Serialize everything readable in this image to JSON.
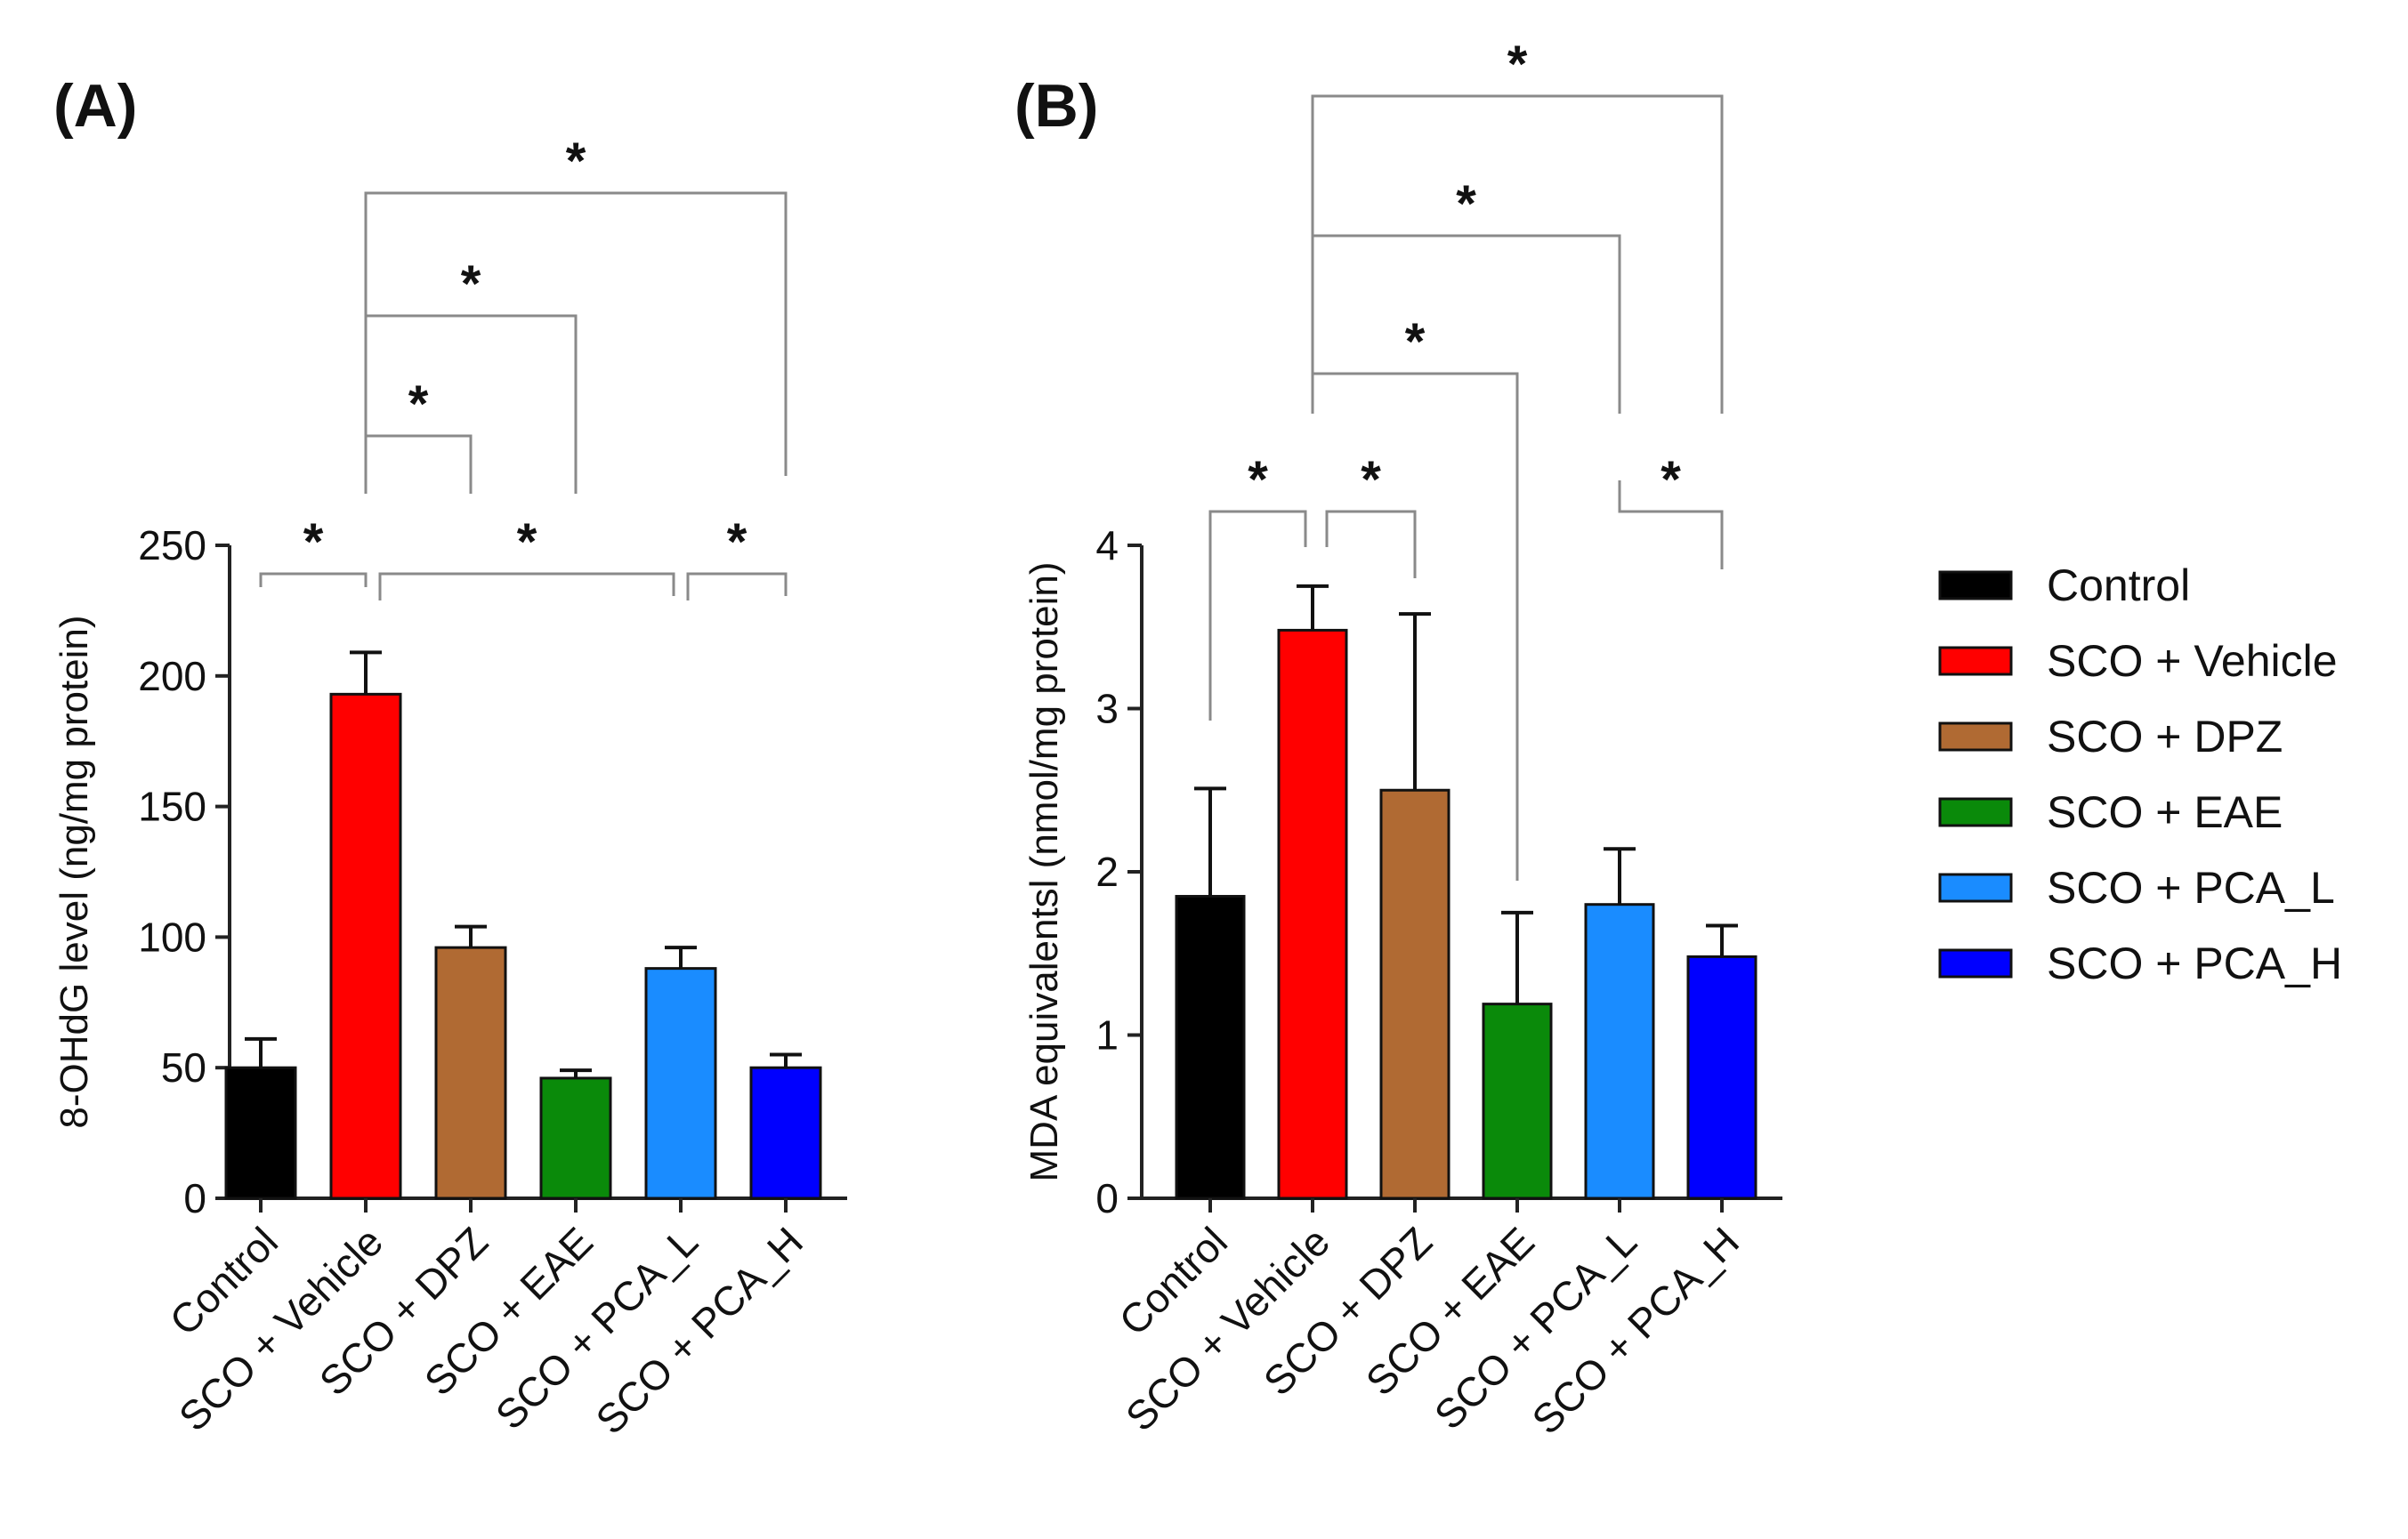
{
  "chart_data": [
    {
      "type": "bar",
      "panel": "(A)",
      "ylabel": "8-OHdG level (ng/mg protein)",
      "ylim": [
        0,
        250
      ],
      "yticks": [
        "0",
        "50",
        "100",
        "150",
        "200",
        "250"
      ],
      "categories": [
        "Control",
        "SCO + Vehicle",
        "SCO + DPZ",
        "SCO + EAE",
        "SCO + PCA_L",
        "SCO + PCA_H"
      ],
      "values": [
        50,
        193,
        96,
        46,
        88,
        50
      ],
      "errors": [
        11,
        16,
        8,
        3,
        8,
        5
      ],
      "significance": [
        {
          "from": 0,
          "to": 1,
          "label": "*"
        },
        {
          "from": 1,
          "to": 4,
          "label": "*"
        },
        {
          "from": 4,
          "to": 5,
          "label": "*"
        },
        {
          "from": 1,
          "to": 2,
          "label": "*"
        },
        {
          "from": 1,
          "to": 3,
          "label": "*"
        },
        {
          "from": 1,
          "to": 5,
          "label": "*"
        }
      ]
    },
    {
      "type": "bar",
      "panel": "(B)",
      "ylabel": "MDA equivalentsl (nmol/mg protein)",
      "ylim": [
        0,
        4
      ],
      "yticks": [
        "0",
        "1",
        "2",
        "3",
        "4"
      ],
      "categories": [
        "Control",
        "SCO + Vehicle",
        "SCO + DPZ",
        "SCO + EAE",
        "SCO + PCA_L",
        "SCO + PCA_H"
      ],
      "values": [
        1.85,
        3.48,
        2.5,
        1.19,
        1.8,
        1.48
      ],
      "errors": [
        0.66,
        0.27,
        1.08,
        0.56,
        0.34,
        0.19
      ],
      "significance": [
        {
          "from": 0,
          "to": 1,
          "label": "*"
        },
        {
          "from": 1,
          "to": 2,
          "label": "*"
        },
        {
          "from": 4,
          "to": 5,
          "label": "*"
        },
        {
          "from": 1,
          "to": 3,
          "label": "*"
        },
        {
          "from": 1,
          "to": 4,
          "label": "*"
        },
        {
          "from": 1,
          "to": 5,
          "label": "*"
        }
      ]
    }
  ],
  "legend": {
    "placement": "right",
    "entries": [
      {
        "label": "Control",
        "color": "#000000"
      },
      {
        "label": "SCO + Vehicle",
        "color": "#ff0000"
      },
      {
        "label": "SCO + DPZ",
        "color": "#b06a33"
      },
      {
        "label": "SCO + EAE",
        "color": "#0a8a0a"
      },
      {
        "label": "SCO + PCA_L",
        "color": "#1a8cff"
      },
      {
        "label": "SCO + PCA_H",
        "color": "#0000ff"
      }
    ]
  }
}
